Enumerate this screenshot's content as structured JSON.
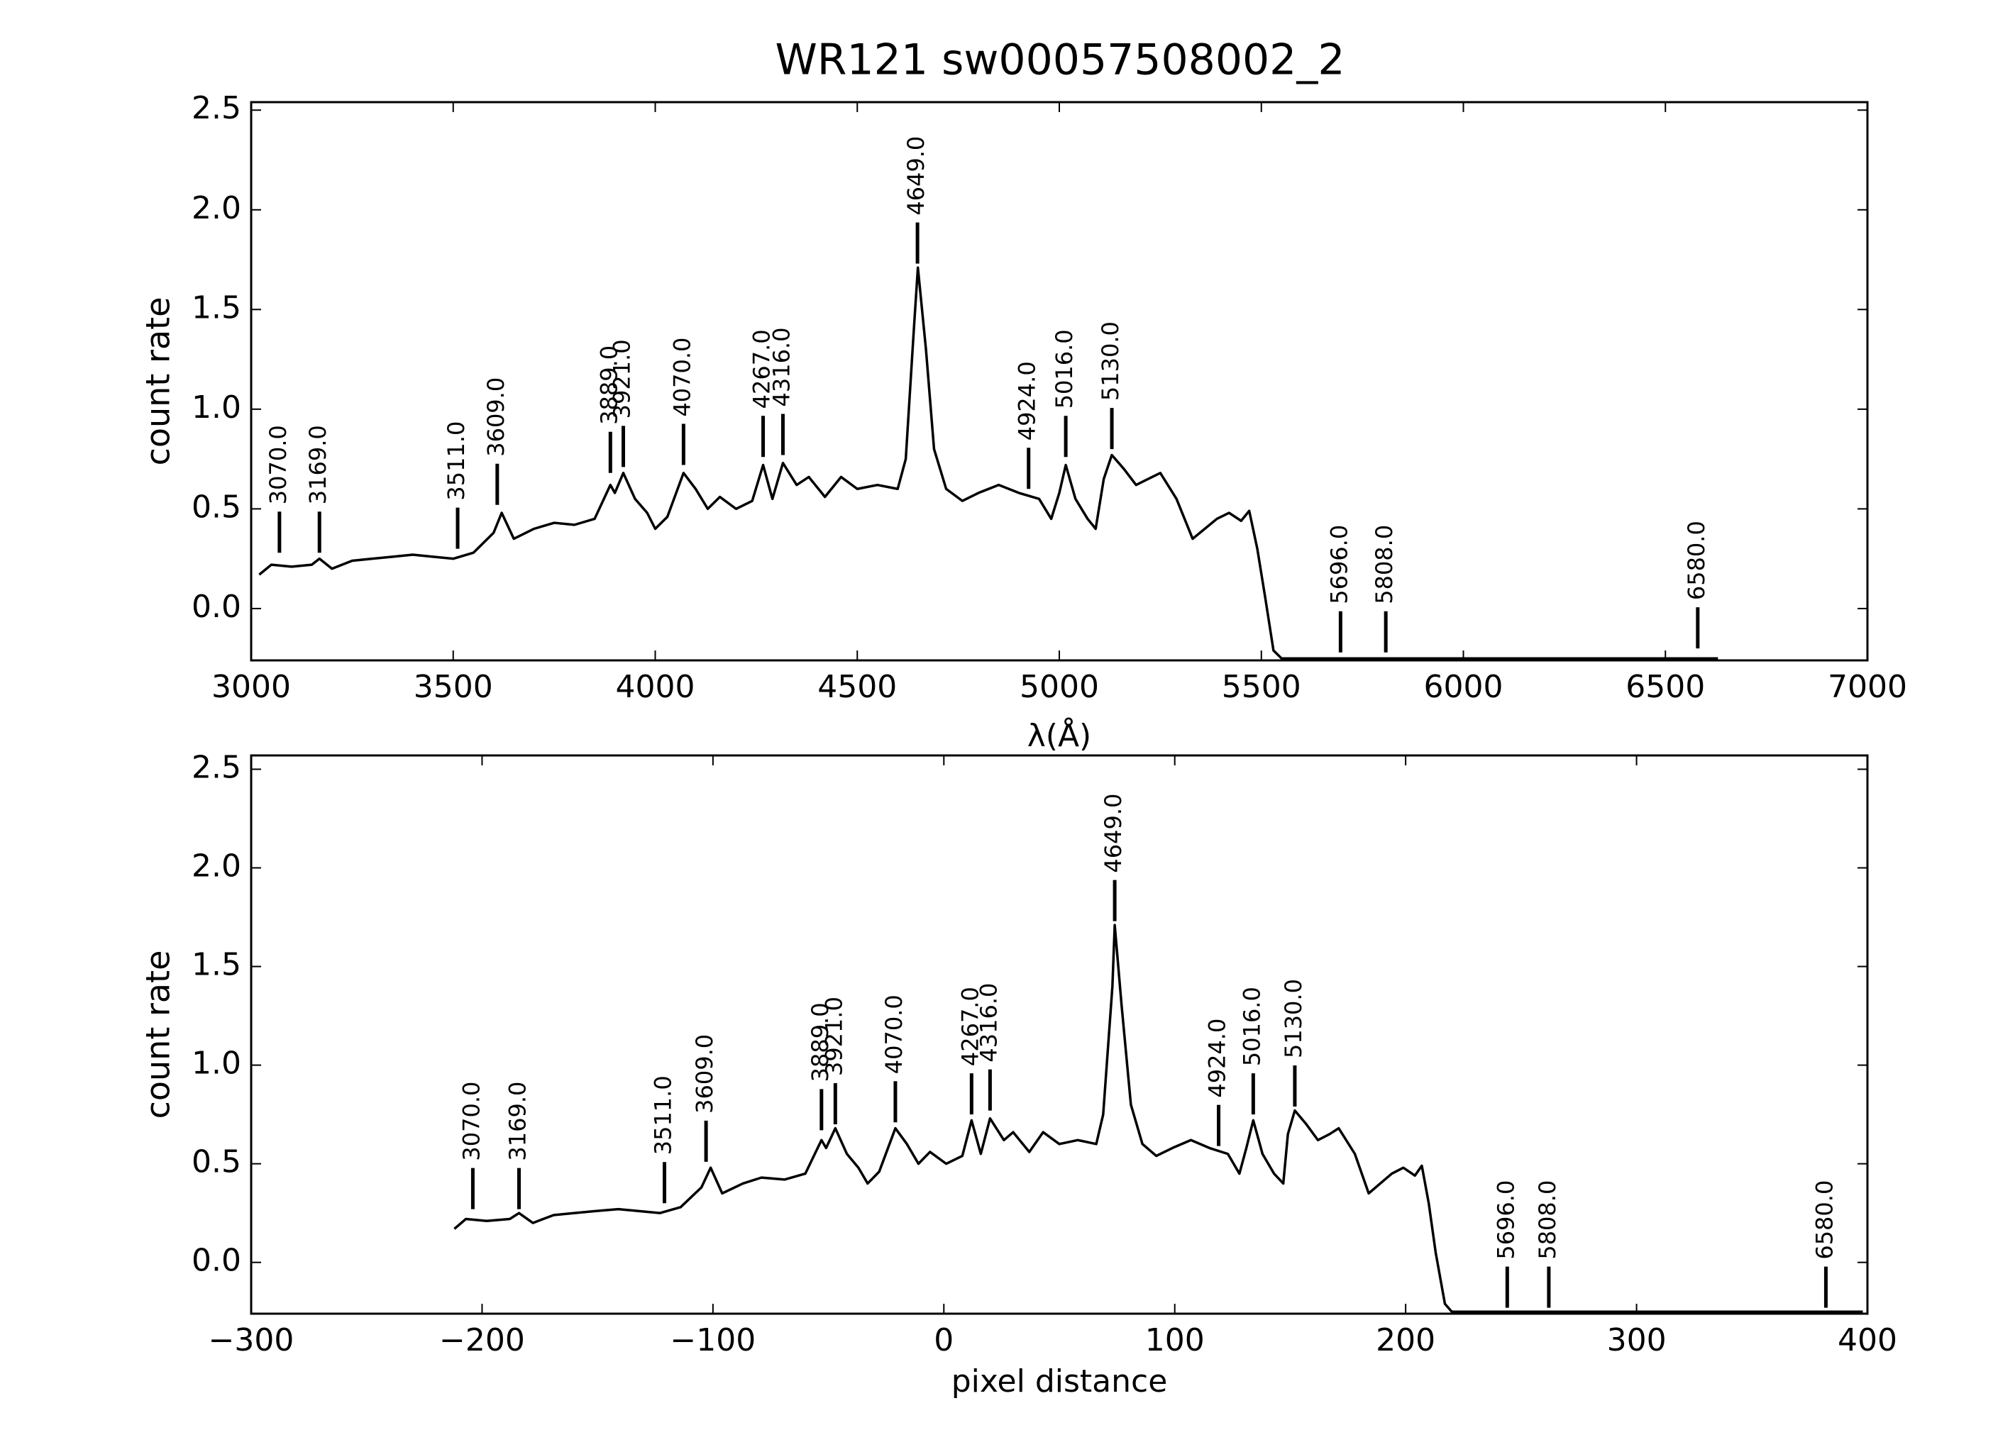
{
  "chart_data": [
    {
      "type": "line",
      "title": "WR121  sw00057508002_2",
      "xlabel": "λ(Å)",
      "ylabel": "count rate",
      "color": "#000000",
      "xlim": [
        3000,
        7000
      ],
      "ylim": [
        -0.26,
        2.54
      ],
      "xticks": [
        3000,
        3500,
        4000,
        4500,
        5000,
        5500,
        6000,
        6500,
        7000
      ],
      "yticks": [
        {
          "value": 0,
          "label": "0.0"
        },
        {
          "value": 0.5,
          "label": "0.5"
        },
        {
          "value": 1,
          "label": "1.0"
        },
        {
          "value": 1.5,
          "label": "1.5"
        },
        {
          "value": 2,
          "label": "2.0"
        },
        {
          "value": 2.5,
          "label": "2.5"
        }
      ],
      "x": [
        3020,
        3050,
        3100,
        3150,
        3169,
        3200,
        3250,
        3300,
        3350,
        3400,
        3450,
        3500,
        3550,
        3600,
        3620,
        3650,
        3700,
        3750,
        3800,
        3850,
        3889,
        3900,
        3921,
        3950,
        3980,
        4000,
        4030,
        4070,
        4100,
        4130,
        4160,
        4200,
        4240,
        4267,
        4290,
        4316,
        4350,
        4380,
        4420,
        4460,
        4500,
        4550,
        4600,
        4620,
        4640,
        4650,
        4670,
        4690,
        4720,
        4760,
        4800,
        4850,
        4900,
        4950,
        4980,
        5000,
        5016,
        5040,
        5070,
        5090,
        5110,
        5130,
        5160,
        5190,
        5220,
        5250,
        5290,
        5330,
        5360,
        5390,
        5420,
        5450,
        5470,
        5490,
        5510,
        5530,
        5550,
        6630
      ],
      "values": [
        0.17,
        0.22,
        0.21,
        0.22,
        0.25,
        0.2,
        0.24,
        0.25,
        0.26,
        0.27,
        0.26,
        0.25,
        0.28,
        0.38,
        0.48,
        0.35,
        0.4,
        0.43,
        0.42,
        0.45,
        0.62,
        0.58,
        0.68,
        0.55,
        0.48,
        0.4,
        0.46,
        0.68,
        0.6,
        0.5,
        0.56,
        0.5,
        0.54,
        0.72,
        0.55,
        0.73,
        0.62,
        0.66,
        0.56,
        0.66,
        0.6,
        0.62,
        0.6,
        0.75,
        1.4,
        1.71,
        1.3,
        0.8,
        0.6,
        0.54,
        0.58,
        0.62,
        0.58,
        0.55,
        0.45,
        0.58,
        0.72,
        0.55,
        0.45,
        0.4,
        0.65,
        0.77,
        0.7,
        0.62,
        0.65,
        0.68,
        0.55,
        0.35,
        0.4,
        0.45,
        0.48,
        0.44,
        0.49,
        0.3,
        0.05,
        -0.21,
        -0.25,
        -0.25
      ],
      "annotations": [
        {
          "x": 3070,
          "y": 0.28,
          "label": "3070.0"
        },
        {
          "x": 3169,
          "y": 0.28,
          "label": "3169.0"
        },
        {
          "x": 3511,
          "y": 0.3,
          "label": "3511.0"
        },
        {
          "x": 3609,
          "y": 0.52,
          "label": "3609.0"
        },
        {
          "x": 3889,
          "y": 0.68,
          "label": "3889.0"
        },
        {
          "x": 3921,
          "y": 0.71,
          "label": "3921.0"
        },
        {
          "x": 4070,
          "y": 0.72,
          "label": "4070.0"
        },
        {
          "x": 4267,
          "y": 0.76,
          "label": "4267.0"
        },
        {
          "x": 4316,
          "y": 0.77,
          "label": "4316.0"
        },
        {
          "x": 4649,
          "y": 1.73,
          "label": "4649.0"
        },
        {
          "x": 4924,
          "y": 0.6,
          "label": "4924.0"
        },
        {
          "x": 5016,
          "y": 0.76,
          "label": "5016.0"
        },
        {
          "x": 5130,
          "y": 0.8,
          "label": "5130.0"
        },
        {
          "x": 5696,
          "y": -0.22,
          "label": "5696.0"
        },
        {
          "x": 5808,
          "y": -0.22,
          "label": "5808.0"
        },
        {
          "x": 6580,
          "y": -0.2,
          "label": "6580.0"
        }
      ]
    },
    {
      "type": "line",
      "xlabel": "pixel distance",
      "ylabel": "count rate",
      "color": "#000000",
      "xlim": [
        -300,
        400
      ],
      "ylim": [
        -0.26,
        2.57
      ],
      "xticks": [
        {
          "value": -300,
          "label": "−300"
        },
        {
          "value": -200,
          "label": "−200"
        },
        {
          "value": -100,
          "label": "−100"
        },
        0,
        100,
        200,
        300,
        400
      ],
      "yticks": [
        {
          "value": 0,
          "label": "0.0"
        },
        {
          "value": 0.5,
          "label": "0.5"
        },
        {
          "value": 1,
          "label": "1.0"
        },
        {
          "value": 1.5,
          "label": "1.5"
        },
        {
          "value": 2,
          "label": "2.0"
        },
        {
          "value": 2.5,
          "label": "2.5"
        }
      ],
      "x": [
        -212,
        -207,
        -198,
        -188,
        -184,
        -178,
        -169,
        -160,
        -151,
        -141,
        -132,
        -123,
        -114,
        -105,
        -101,
        -96,
        -87,
        -79,
        -69,
        -60,
        -53,
        -51,
        -47,
        -42,
        -37,
        -33,
        -28,
        -21,
        -16,
        -11,
        -6,
        1,
        8,
        12,
        16,
        20,
        26,
        30,
        37,
        43,
        50,
        58,
        66,
        69,
        73,
        74,
        77,
        81,
        86,
        92,
        99,
        107,
        115,
        123,
        128,
        131,
        134,
        138,
        143,
        147,
        149,
        152,
        157,
        162,
        167,
        171,
        178,
        184,
        189,
        194,
        199,
        204,
        207,
        210,
        213,
        217,
        220,
        398
      ],
      "values": [
        0.17,
        0.22,
        0.21,
        0.22,
        0.25,
        0.2,
        0.24,
        0.25,
        0.26,
        0.27,
        0.26,
        0.25,
        0.28,
        0.38,
        0.48,
        0.35,
        0.4,
        0.43,
        0.42,
        0.45,
        0.62,
        0.58,
        0.68,
        0.55,
        0.48,
        0.4,
        0.46,
        0.68,
        0.6,
        0.5,
        0.56,
        0.5,
        0.54,
        0.72,
        0.55,
        0.73,
        0.62,
        0.66,
        0.56,
        0.66,
        0.6,
        0.62,
        0.6,
        0.75,
        1.4,
        1.71,
        1.3,
        0.8,
        0.6,
        0.54,
        0.58,
        0.62,
        0.58,
        0.55,
        0.45,
        0.58,
        0.72,
        0.55,
        0.45,
        0.4,
        0.65,
        0.77,
        0.7,
        0.62,
        0.65,
        0.68,
        0.55,
        0.35,
        0.4,
        0.45,
        0.48,
        0.44,
        0.49,
        0.3,
        0.05,
        -0.21,
        -0.25,
        -0.25
      ],
      "annotations": [
        {
          "x": -204,
          "y": 0.27,
          "label": "3070.0"
        },
        {
          "x": -184,
          "y": 0.27,
          "label": "3169.0"
        },
        {
          "x": -121,
          "y": 0.3,
          "label": "3511.0"
        },
        {
          "x": -103,
          "y": 0.51,
          "label": "3609.0"
        },
        {
          "x": -53,
          "y": 0.67,
          "label": "3889.0"
        },
        {
          "x": -47,
          "y": 0.7,
          "label": "3921.0"
        },
        {
          "x": -21,
          "y": 0.71,
          "label": "4070.0"
        },
        {
          "x": 12,
          "y": 0.75,
          "label": "4267.0"
        },
        {
          "x": 20,
          "y": 0.77,
          "label": "4316.0"
        },
        {
          "x": 74,
          "y": 1.73,
          "label": "4649.0"
        },
        {
          "x": 119,
          "y": 0.59,
          "label": "4924.0"
        },
        {
          "x": 134,
          "y": 0.75,
          "label": "5016.0"
        },
        {
          "x": 152,
          "y": 0.79,
          "label": "5130.0"
        },
        {
          "x": 244,
          "y": -0.23,
          "label": "5696.0"
        },
        {
          "x": 262,
          "y": -0.23,
          "label": "5808.0"
        },
        {
          "x": 382,
          "y": -0.23,
          "label": "6580.0"
        }
      ]
    }
  ]
}
